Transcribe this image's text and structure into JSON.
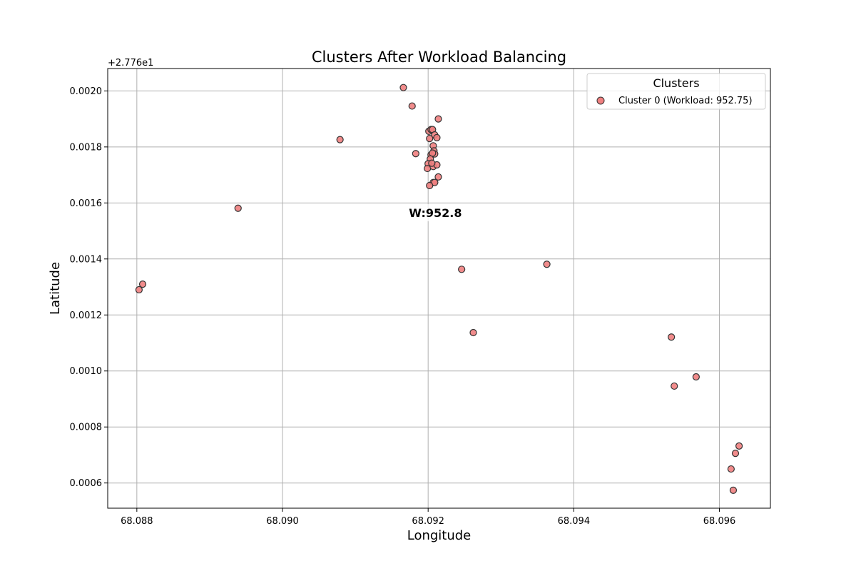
{
  "chart_data": {
    "type": "scatter",
    "title": "Clusters After Workload Balancing",
    "xlabel": "Longitude",
    "ylabel": "Latitude",
    "y_offset_label": "+2.776e1",
    "xlim": [
      68.0876,
      68.0967
    ],
    "ylim": [
      0.00051,
      0.00208
    ],
    "x_ticks": [
      68.088,
      68.09,
      68.092,
      68.094,
      68.096
    ],
    "x_tick_labels": [
      "68.088",
      "68.090",
      "68.092",
      "68.094",
      "68.096"
    ],
    "y_ticks": [
      0.0006,
      0.0008,
      0.001,
      0.0012,
      0.0014,
      0.0016,
      0.0018,
      0.002
    ],
    "y_tick_labels": [
      "0.0006",
      "0.0008",
      "0.0010",
      "0.0012",
      "0.0014",
      "0.0016",
      "0.0018",
      "0.0020"
    ],
    "grid": true,
    "legend": {
      "title": "Clusters",
      "placement": "top-right"
    },
    "series": [
      {
        "name": "Cluster 0 (Workload: 952.75)",
        "color": "#f08080",
        "edge_color": "#333333",
        "points": [
          {
            "x": 68.08803,
            "y": 0.00129
          },
          {
            "x": 68.08808,
            "y": 0.00131
          },
          {
            "x": 68.08939,
            "y": 0.001581
          },
          {
            "x": 68.09079,
            "y": 0.001826
          },
          {
            "x": 68.09166,
            "y": 0.002012
          },
          {
            "x": 68.09178,
            "y": 0.001946
          },
          {
            "x": 68.09183,
            "y": 0.001776
          },
          {
            "x": 68.09214,
            "y": 0.0019
          },
          {
            "x": 68.09201,
            "y": 0.001856
          },
          {
            "x": 68.09204,
            "y": 0.001862
          },
          {
            "x": 68.09206,
            "y": 0.001862
          },
          {
            "x": 68.09209,
            "y": 0.001843
          },
          {
            "x": 68.09202,
            "y": 0.00183
          },
          {
            "x": 68.09212,
            "y": 0.001833
          },
          {
            "x": 68.09207,
            "y": 0.001804
          },
          {
            "x": 68.09208,
            "y": 0.001786
          },
          {
            "x": 68.09204,
            "y": 0.001772
          },
          {
            "x": 68.09209,
            "y": 0.001775
          },
          {
            "x": 68.09206,
            "y": 0.001778
          },
          {
            "x": 68.09203,
            "y": 0.001757
          },
          {
            "x": 68.092,
            "y": 0.00174
          },
          {
            "x": 68.09199,
            "y": 0.001723
          },
          {
            "x": 68.09207,
            "y": 0.00173
          },
          {
            "x": 68.09212,
            "y": 0.001736
          },
          {
            "x": 68.09205,
            "y": 0.001742
          },
          {
            "x": 68.09214,
            "y": 0.001693
          },
          {
            "x": 68.09207,
            "y": 0.001673
          },
          {
            "x": 68.09209,
            "y": 0.001673
          },
          {
            "x": 68.09202,
            "y": 0.001662
          },
          {
            "x": 68.09246,
            "y": 0.001363
          },
          {
            "x": 68.09262,
            "y": 0.001137
          },
          {
            "x": 68.09363,
            "y": 0.001381
          },
          {
            "x": 68.09534,
            "y": 0.001121
          },
          {
            "x": 68.09538,
            "y": 0.000946
          },
          {
            "x": 68.09568,
            "y": 0.000979
          },
          {
            "x": 68.09616,
            "y": 0.00065
          },
          {
            "x": 68.09619,
            "y": 0.000574
          },
          {
            "x": 68.09622,
            "y": 0.000706
          },
          {
            "x": 68.09627,
            "y": 0.000732
          }
        ]
      }
    ],
    "annotations": [
      {
        "text": "W:952.8",
        "x": 68.0921,
        "y": 0.001565
      }
    ]
  }
}
